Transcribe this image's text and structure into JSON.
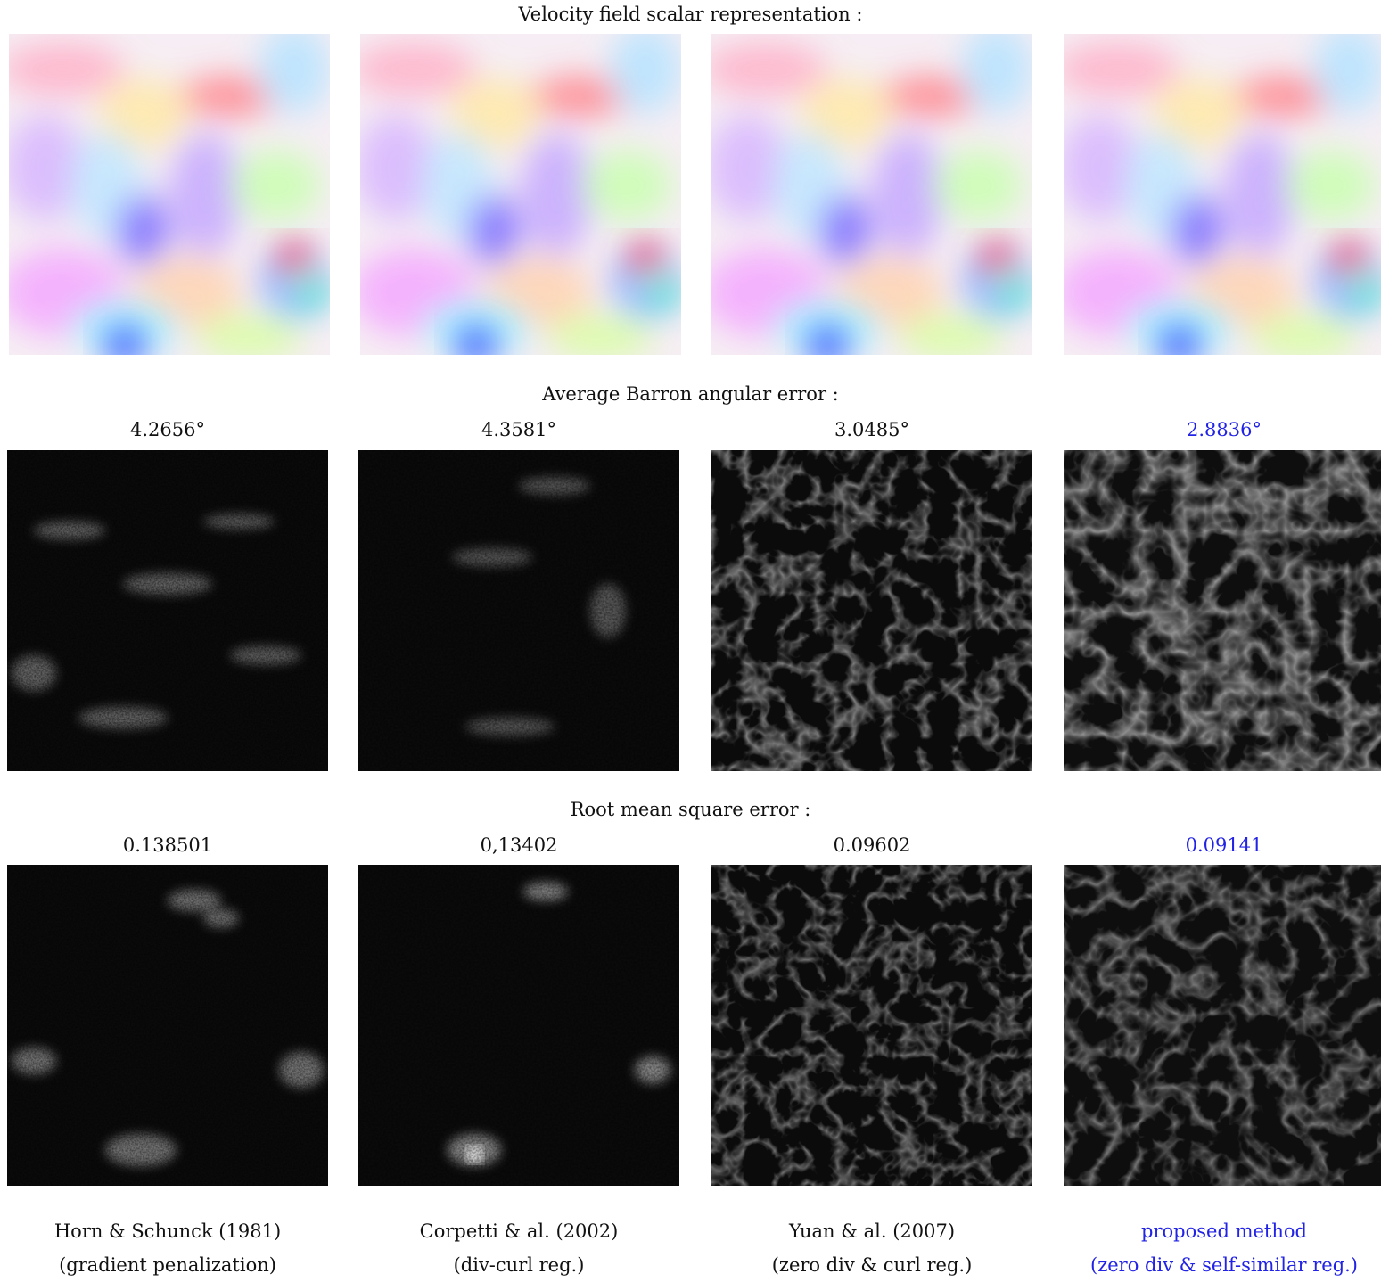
{
  "figure": {
    "section_velocity": "Velocity field scalar representation :",
    "section_barron": "Average Barron angular error :",
    "section_rmse": "Root mean square error :",
    "methods": [
      {
        "name": "Horn & Schunck (1981)",
        "detail": "(gradient penalization)",
        "barron_error": "4.2656°",
        "rmse": "0.138501",
        "highlight": false
      },
      {
        "name": "Corpetti & al. (2002)",
        "detail": "(div-curl reg.)",
        "barron_error": "4.3581°",
        "rmse": "0,13402",
        "highlight": false
      },
      {
        "name": "Yuan & al. (2007)",
        "detail": "(zero div & curl reg.)",
        "barron_error": "3.0485°",
        "rmse": "0.09602",
        "highlight": false
      },
      {
        "name": "proposed method",
        "detail": "(zero div & self-similar reg.)",
        "barron_error": "2.8836°",
        "rmse": "0.09141",
        "highlight": true
      }
    ],
    "colors": {
      "text": "#111111",
      "highlight": "#2323e6",
      "error_bg": "#0b0b0b"
    }
  }
}
